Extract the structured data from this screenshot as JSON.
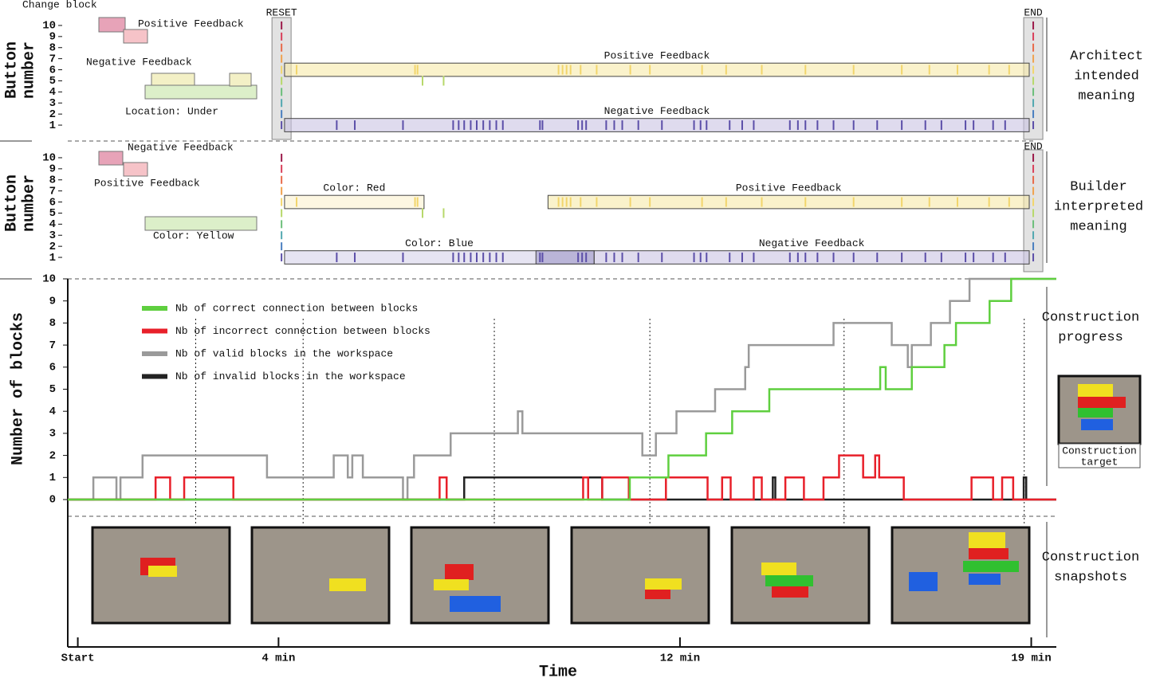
{
  "chart_data": [
    {
      "type": "raster",
      "ylabel": [
        "Button",
        "number"
      ],
      "xlim": [
        -0.2,
        19.5
      ],
      "ylim": [
        0.5,
        10.5
      ],
      "yticks": [
        1,
        2,
        3,
        4,
        5,
        6,
        7,
        8,
        9,
        10
      ],
      "colors": [
        "#5b4ea8",
        "#4a7fc0",
        "#52a8b0",
        "#6cbf7a",
        "#b7d86a",
        "#f2d56b",
        "#f0a24f",
        "#e86a4a",
        "#d9405a",
        "#9c1b4a"
      ],
      "key_labels": [
        "Change block",
        "Positive Feedback",
        "Negative Feedback",
        "Location: Under"
      ],
      "reset": {
        "label": "RESET",
        "x": 4.06
      },
      "end": {
        "label": "END",
        "x": 19.04
      },
      "events": [
        {
          "button": 6,
          "times": [
            4.36,
            6.72,
            6.77,
            9.58,
            9.66,
            9.74,
            9.82,
            10.02,
            10.34,
            11.01,
            11.4,
            12.44,
            12.92,
            13.63,
            14.5,
            15.46,
            16.42,
            16.97,
            17.53,
            18.16,
            18.56
          ]
        },
        {
          "button": 5,
          "times": [
            6.87,
            7.29
          ]
        },
        {
          "button": 1,
          "times": [
            5.16,
            5.52,
            6.48,
            7.48,
            7.59,
            7.7,
            7.83,
            7.95,
            8.08,
            8.21,
            8.34,
            8.47,
            9.21,
            9.26,
            9.97,
            10.05,
            10.13,
            10.53,
            10.69,
            10.85,
            11.17,
            11.64,
            12.28,
            12.41,
            12.53,
            12.99,
            13.24,
            13.47,
            14.19,
            14.35,
            14.5,
            14.74,
            15.06,
            15.46,
            15.93,
            16.42,
            16.89,
            17.21,
            17.69,
            17.85,
            18.24,
            18.48
          ]
        }
      ],
      "annotations": [
        {
          "label": "Positive Feedback",
          "x": [
            4.12,
            18.96
          ],
          "y": [
            5.4,
            6.6
          ],
          "color": "#f7e9a8"
        },
        {
          "label": "Negative Feedback",
          "x": [
            4.12,
            18.96
          ],
          "y": [
            0.4,
            1.6
          ],
          "color": "#c9c3e3"
        }
      ],
      "side_label": [
        "Architect",
        "intended",
        "meaning"
      ]
    },
    {
      "type": "raster",
      "ylabel": [
        "Button",
        "number"
      ],
      "xlim": [
        -0.2,
        19.5
      ],
      "ylim": [
        0.5,
        10.5
      ],
      "yticks": [
        1,
        2,
        3,
        4,
        5,
        6,
        7,
        8,
        9,
        10
      ],
      "colors": [
        "#5b4ea8",
        "#4a7fc0",
        "#52a8b0",
        "#6cbf7a",
        "#b7d86a",
        "#f2d56b",
        "#f0a24f",
        "#e86a4a",
        "#d9405a",
        "#9c1b4a"
      ],
      "key_labels": [
        "Negative Feedback",
        "Positive Feedback",
        "Color: Yellow"
      ],
      "reset": {
        "x": 4.06
      },
      "end": {
        "label": "END",
        "x": 19.04
      },
      "events": [
        {
          "button": 6,
          "times": [
            4.36,
            6.72,
            6.77,
            9.58,
            9.66,
            9.74,
            9.82,
            10.02,
            10.34,
            11.01,
            11.4,
            12.44,
            12.92,
            13.63,
            14.5,
            15.46,
            16.42,
            16.97,
            17.53,
            18.16,
            18.56
          ]
        },
        {
          "button": 5,
          "times": [
            6.87,
            7.29
          ]
        },
        {
          "button": 1,
          "times": [
            5.16,
            5.52,
            6.48,
            7.48,
            7.59,
            7.7,
            7.83,
            7.95,
            8.08,
            8.21,
            8.34,
            8.47,
            9.21,
            9.26,
            9.97,
            10.05,
            10.13,
            10.53,
            10.69,
            10.85,
            11.17,
            11.64,
            12.28,
            12.41,
            12.53,
            12.99,
            13.24,
            13.47,
            14.19,
            14.35,
            14.5,
            14.74,
            15.06,
            15.46,
            15.93,
            16.42,
            16.89,
            17.21,
            17.69,
            17.85,
            18.24,
            18.48
          ]
        }
      ],
      "annotations": [
        {
          "label": "Color: Red",
          "x": [
            4.12,
            6.9
          ],
          "y": [
            5.4,
            6.6
          ],
          "color": "#fbf1cf"
        },
        {
          "label": "Positive Feedback",
          "x": [
            9.37,
            18.96
          ],
          "y": [
            5.4,
            6.6
          ],
          "color": "#f7e9a8"
        },
        {
          "label": "Color: Blue",
          "x": [
            4.12,
            10.29
          ],
          "y": [
            0.4,
            1.6
          ],
          "color": "#d6d2ea"
        },
        {
          "x": [
            9.13,
            10.29
          ],
          "y": [
            0.4,
            1.6
          ],
          "color": "#9d96c6"
        },
        {
          "label": "Negative Feedback",
          "x": [
            10.29,
            18.96
          ],
          "y": [
            0.4,
            1.6
          ],
          "color": "#c9c3e3"
        }
      ],
      "side_label": [
        "Builder",
        "interpreted",
        "meaning"
      ]
    },
    {
      "type": "line",
      "step": true,
      "ylabel": "Number of blocks",
      "xlabel": "Time",
      "xlim": [
        -0.2,
        19.5
      ],
      "ylim": [
        0,
        10
      ],
      "yticks": [
        0,
        1,
        2,
        3,
        4,
        5,
        6,
        7,
        8,
        9,
        10
      ],
      "xticks": [
        {
          "value": 0,
          "label": "Start"
        },
        {
          "value": 4,
          "label": "4 min"
        },
        {
          "value": 12,
          "label": "12 min"
        },
        {
          "value": 19,
          "label": "19 min"
        }
      ],
      "legend": "upper left",
      "series": [
        {
          "name": "Nb of correct connection between blocks",
          "color": "#5fcf3f",
          "x": [
            -0.2,
            11.0,
            11.77,
            12.52,
            13.04,
            13.78,
            15.99,
            16.1,
            16.62,
            17.27,
            17.5,
            18.17,
            18.6,
            19.5
          ],
          "values": [
            0,
            1,
            2,
            3,
            4,
            5,
            6,
            5,
            6,
            7,
            8,
            9,
            10,
            10
          ]
        },
        {
          "name": "Nb of incorrect connection between blocks",
          "color": "#e8202a",
          "x": [
            -0.2,
            1.55,
            1.84,
            2.12,
            3.1,
            7.21,
            7.35,
            10.07,
            10.17,
            10.45,
            10.98,
            11.72,
            12.55,
            12.84,
            13.01,
            13.47,
            13.63,
            14.1,
            14.47,
            14.86,
            15.17,
            15.65,
            15.89,
            15.97,
            16.46,
            17.81,
            18.24,
            18.42,
            18.64,
            19.5
          ],
          "values": [
            0,
            1,
            0,
            1,
            0,
            1,
            0,
            1,
            0,
            1,
            0,
            1,
            0,
            1,
            0,
            1,
            0,
            1,
            0,
            1,
            2,
            1,
            2,
            1,
            0,
            1,
            0,
            1,
            0,
            0
          ]
        },
        {
          "name": "Nb of valid blocks in the workspace",
          "color": "#9a9a9a",
          "x": [
            -0.2,
            0.31,
            0.77,
            0.85,
            1.29,
            3.77,
            5.1,
            5.38,
            5.47,
            5.68,
            6.48,
            6.57,
            6.7,
            7.43,
            8.77,
            8.86,
            11.25,
            11.52,
            11.93,
            12.7,
            13.3,
            13.37,
            15.06,
            16.22,
            16.54,
            16.62,
            17.0,
            17.38,
            17.77,
            19.5
          ],
          "values": [
            0,
            1,
            0,
            1,
            2,
            1,
            2,
            1,
            2,
            1,
            0,
            1,
            2,
            3,
            4,
            3,
            2,
            3,
            4,
            5,
            6,
            7,
            8,
            7,
            6,
            7,
            8,
            9,
            10,
            10
          ]
        },
        {
          "name": "Nb of invalid blocks in the workspace",
          "color": "#222222",
          "x": [
            -0.2,
            7.7,
            10.45,
            13.85,
            13.9,
            18.85,
            18.9,
            19.5
          ],
          "values": [
            0,
            1,
            0,
            1,
            0,
            1,
            0,
            0
          ]
        }
      ],
      "markers": [
        2.35,
        4.49,
        8.3,
        11.4,
        15.27,
        18.86
      ],
      "side_labels": [
        [
          "Construction",
          "progress"
        ],
        [
          "Construction",
          "snapshots"
        ]
      ],
      "target_caption": [
        "Construction",
        "target"
      ]
    }
  ]
}
